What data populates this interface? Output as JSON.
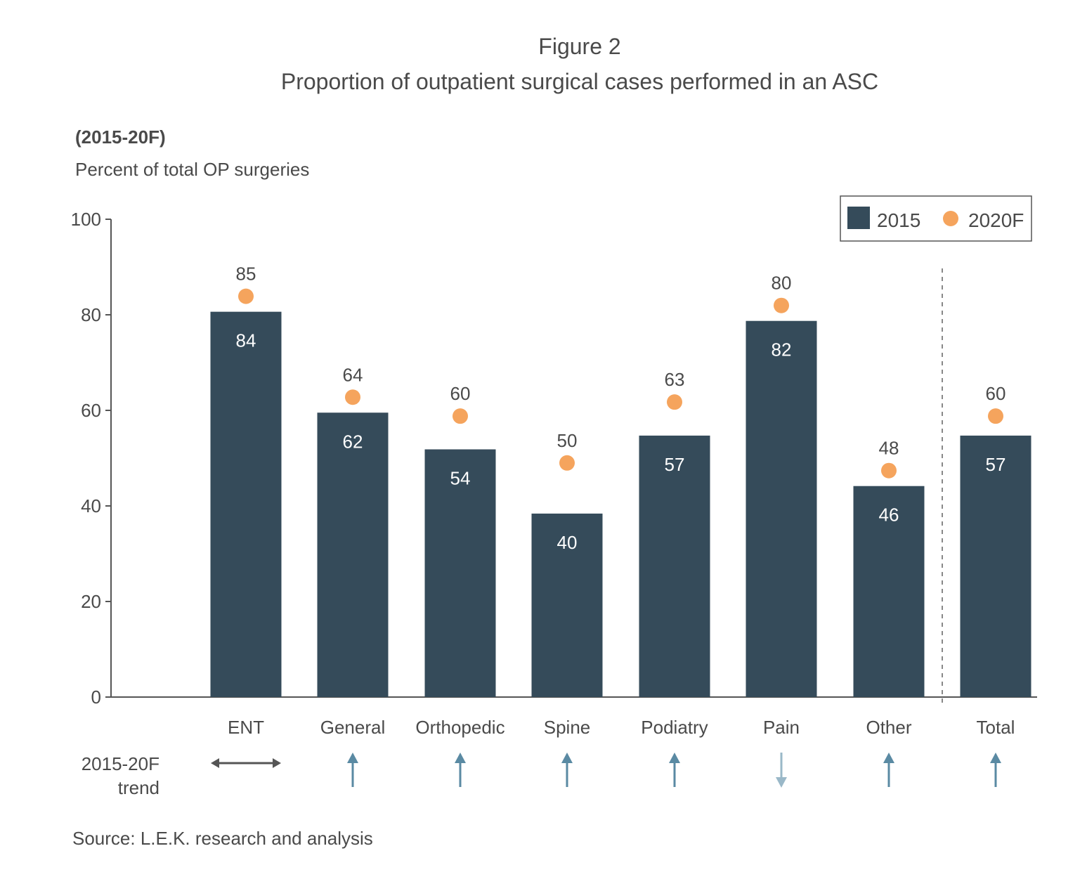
{
  "figure_label": "Figure 2",
  "title": "Proportion of outpatient surgical cases performed in an ASC",
  "subtitle": "(2015-20F)",
  "ylabel": "Percent of total OP surgeries",
  "trend_label_line1": "2015-20F",
  "trend_label_line2": "trend",
  "source": "Source: L.E.K. research and analysis",
  "colors": {
    "bar": "#354b5a",
    "dot": "#f5a45d",
    "axis": "#555555",
    "trend_up": "#5a8aa3",
    "trend_down": "#9ab8c8",
    "trend_flat": "#555555"
  },
  "chart_data": {
    "type": "bar",
    "categories": [
      "ENT",
      "General",
      "Orthopedic",
      "Spine",
      "Podiatry",
      "Pain",
      "Other",
      "Total"
    ],
    "series": [
      {
        "name": "2015",
        "kind": "bar",
        "values": [
          84,
          62,
          54,
          40,
          57,
          82,
          46,
          57
        ]
      },
      {
        "name": "2020F",
        "kind": "dot",
        "values": [
          85,
          64,
          60,
          50,
          63,
          80,
          48,
          60
        ]
      }
    ],
    "ylim": [
      0,
      100
    ],
    "yticks": [
      "0",
      "20",
      "40",
      "60",
      "80",
      "100"
    ],
    "legend_position": "top-right",
    "trend": [
      "flat",
      "up",
      "up",
      "up",
      "up",
      "down",
      "up",
      "up"
    ],
    "separator_before": "Total",
    "grid": false
  }
}
